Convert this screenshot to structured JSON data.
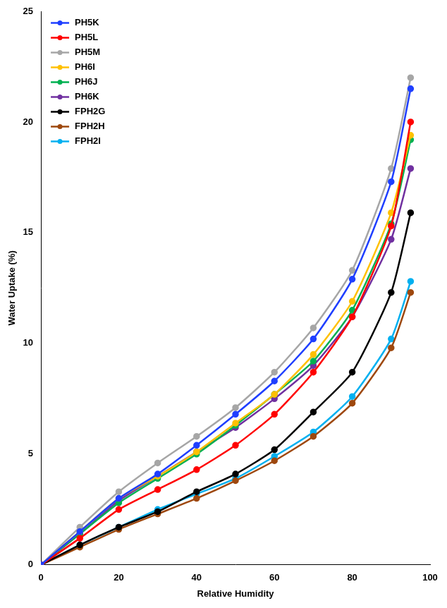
{
  "chart_data": {
    "type": "line",
    "x_label": "Relative Humidity",
    "y_label": "Water Uptake (%)",
    "x": [
      0,
      10,
      20,
      30,
      40,
      50,
      60,
      70,
      80,
      90,
      95
    ],
    "series": [
      {
        "name": "PH5K",
        "color": "#1f3fff",
        "values": [
          0,
          1.5,
          3.0,
          4.1,
          5.4,
          6.8,
          8.3,
          10.2,
          12.9,
          17.3,
          21.5
        ]
      },
      {
        "name": "PH5L",
        "color": "#ff0000",
        "values": [
          0,
          1.2,
          2.5,
          3.4,
          4.3,
          5.4,
          6.8,
          8.7,
          11.2,
          15.3,
          20.0
        ]
      },
      {
        "name": "PH5M",
        "color": "#a6a6a6",
        "values": [
          0,
          1.7,
          3.3,
          4.6,
          5.8,
          7.1,
          8.7,
          10.7,
          13.3,
          17.9,
          22.0
        ]
      },
      {
        "name": "PH6I",
        "color": "#ffc000",
        "values": [
          0,
          1.5,
          3.0,
          4.0,
          5.1,
          6.4,
          7.7,
          9.5,
          11.9,
          15.9,
          19.4
        ]
      },
      {
        "name": "PH6J",
        "color": "#00b050",
        "values": [
          0,
          1.4,
          2.8,
          3.9,
          5.0,
          6.3,
          7.7,
          9.2,
          11.5,
          15.4,
          19.2
        ]
      },
      {
        "name": "PH6K",
        "color": "#7030a0",
        "values": [
          0,
          1.4,
          2.9,
          4.0,
          5.1,
          6.2,
          7.5,
          9.0,
          11.2,
          14.7,
          17.9
        ]
      },
      {
        "name": "FPH2G",
        "color": "#000000",
        "values": [
          0,
          0.9,
          1.7,
          2.4,
          3.3,
          4.1,
          5.2,
          6.9,
          8.7,
          12.3,
          15.9
        ]
      },
      {
        "name": "FPH2H",
        "color": "#9e480e",
        "values": [
          0,
          0.8,
          1.6,
          2.3,
          3.0,
          3.8,
          4.7,
          5.8,
          7.3,
          9.8,
          12.3
        ]
      },
      {
        "name": "FPH2I",
        "color": "#00b0f0",
        "values": [
          0,
          0.9,
          1.7,
          2.5,
          3.2,
          3.9,
          4.9,
          6.0,
          7.6,
          10.2,
          12.8
        ]
      }
    ],
    "xlim": [
      0,
      100
    ],
    "xticks": [
      0,
      20,
      40,
      60,
      80,
      100
    ],
    "ylim": [
      0,
      25
    ],
    "yticks": [
      0,
      5,
      10,
      15,
      20,
      25
    ],
    "grid": false,
    "legend": "upper left",
    "marker": "circle",
    "line_style": "solid"
  }
}
